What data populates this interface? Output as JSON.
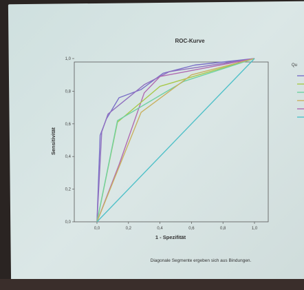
{
  "chart_data": {
    "type": "line",
    "title": "ROC-Kurve",
    "xlabel": "1 - Spezifität",
    "ylabel": "Sensitivität",
    "xlim": [
      0.0,
      1.0
    ],
    "ylim": [
      0.0,
      1.0
    ],
    "xticks": [
      "0,0",
      "0,2",
      "0,4",
      "0,6",
      "0,8",
      "1,0"
    ],
    "yticks": [
      "0,0",
      "0,2",
      "0,4",
      "0,6",
      "0,8",
      "1,0"
    ],
    "note": "Diagonale Segmente ergeben sich aus Bindungen.",
    "legend_title": "Qu",
    "grid": false,
    "series": [
      {
        "color": "#7a6fc7",
        "points": [
          [
            0,
            0
          ],
          [
            0.02,
            0.53
          ],
          [
            0.06,
            0.63
          ],
          [
            0.14,
            0.76
          ],
          [
            0.28,
            0.81
          ],
          [
            0.42,
            0.91
          ],
          [
            0.62,
            0.96
          ],
          [
            1.0,
            1.0
          ]
        ]
      },
      {
        "color": "#8f6fbf",
        "points": [
          [
            0,
            0
          ],
          [
            0.03,
            0.55
          ],
          [
            0.07,
            0.66
          ],
          [
            0.3,
            0.84
          ],
          [
            0.46,
            0.92
          ],
          [
            1.0,
            1.0
          ]
        ]
      },
      {
        "color": "#b06ab0",
        "points": [
          [
            0,
            0
          ],
          [
            0.14,
            0.35
          ],
          [
            0.3,
            0.79
          ],
          [
            0.4,
            0.89
          ],
          [
            1.0,
            1.0
          ]
        ]
      },
      {
        "color": "#a7c94a",
        "points": [
          [
            0,
            0
          ],
          [
            0.13,
            0.61
          ],
          [
            0.4,
            0.83
          ],
          [
            1.0,
            1.0
          ]
        ]
      },
      {
        "color": "#6fd0a0",
        "points": [
          [
            0,
            0
          ],
          [
            0.13,
            0.62
          ],
          [
            0.55,
            0.86
          ],
          [
            1.0,
            1.0
          ]
        ]
      },
      {
        "color": "#c9b060",
        "points": [
          [
            0,
            0
          ],
          [
            0.28,
            0.67
          ],
          [
            0.6,
            0.9
          ],
          [
            1.0,
            1.0
          ]
        ]
      },
      {
        "color": "#4fc0c8",
        "points": [
          [
            0,
            0
          ],
          [
            1.0,
            1.0
          ]
        ]
      }
    ],
    "legend_colors": [
      "#7a6fc7",
      "#a7c94a",
      "#6fd0a0",
      "#c9b060",
      "#b06ab0",
      "#4fc0c8"
    ]
  }
}
